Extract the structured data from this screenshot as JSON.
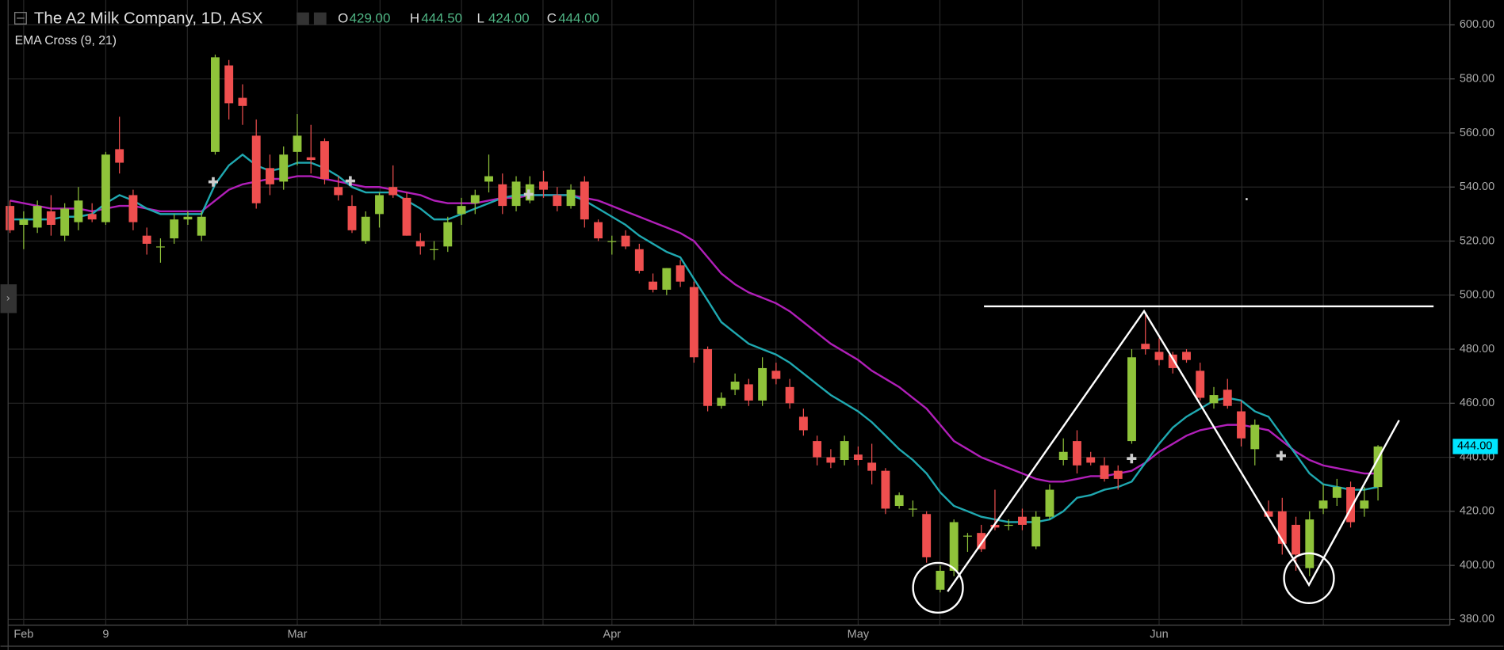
{
  "chart_data": {
    "type": "candlestick",
    "title": "The A2 Milk Company, 1D, ASX",
    "subtitle": "EMA Cross (9, 21)",
    "ohlc_header": [
      {
        "letter": "O",
        "value": "429.00"
      },
      {
        "letter": "H",
        "value": "444.50"
      },
      {
        "letter": "L",
        "value": "424.00"
      },
      {
        "letter": "C",
        "value": "444.00"
      }
    ],
    "last_price": {
      "value": 444,
      "label": "444.00"
    },
    "categories": [
      null,
      "Feb",
      null,
      null,
      null,
      null,
      null,
      "9",
      null,
      null,
      null,
      null,
      null,
      null,
      null,
      null,
      null,
      null,
      null,
      null,
      null,
      "Mar",
      null,
      null,
      null,
      null,
      null,
      null,
      null,
      null,
      null,
      null,
      null,
      null,
      null,
      null,
      null,
      null,
      null,
      null,
      null,
      null,
      null,
      null,
      "Apr",
      null,
      null,
      null,
      null,
      null,
      null,
      null,
      null,
      null,
      null,
      null,
      null,
      null,
      null,
      null,
      null,
      null,
      "May",
      null,
      null,
      null,
      null,
      null,
      null,
      null,
      null,
      null,
      null,
      null,
      null,
      null,
      null,
      null,
      null,
      null,
      null,
      null,
      null,
      null,
      "Jun",
      null,
      null,
      null,
      null,
      null,
      null,
      null,
      null,
      null,
      null,
      null,
      null,
      null,
      null,
      null,
      null
    ],
    "open": [
      533,
      526,
      525,
      531,
      522,
      527,
      530,
      527,
      554,
      537,
      522,
      518,
      521,
      528,
      522,
      553,
      585,
      573,
      559,
      547,
      542,
      553,
      551,
      557,
      540,
      533,
      520,
      530,
      540,
      536,
      520,
      517,
      518,
      530,
      534,
      542,
      541,
      533,
      535,
      542,
      537,
      533,
      542,
      527,
      520,
      522,
      517,
      505,
      502,
      511,
      503,
      480,
      459,
      465,
      467,
      461,
      472,
      466,
      455,
      446,
      440,
      439,
      441,
      438,
      435,
      422,
      421,
      419,
      391,
      398,
      411,
      412,
      415,
      415,
      418,
      407,
      418,
      439,
      446,
      440,
      437,
      435,
      446,
      482,
      479,
      478,
      479,
      472,
      460,
      465,
      457,
      443,
      420,
      420,
      415,
      399,
      421,
      425,
      429,
      421,
      429
    ],
    "high": [
      535,
      531,
      535,
      537,
      534,
      540,
      534,
      553,
      566,
      539,
      525,
      521,
      530,
      531,
      531,
      589,
      587,
      578,
      565,
      552,
      555,
      567,
      563,
      558,
      544,
      537,
      531,
      538,
      548,
      538,
      523,
      520,
      529,
      536,
      539,
      552,
      545,
      544,
      544,
      546,
      540,
      541,
      544,
      528,
      522,
      524,
      519,
      508,
      510,
      513,
      505,
      481,
      464,
      471,
      469,
      477,
      475,
      469,
      458,
      448,
      443,
      448,
      444,
      445,
      436,
      427,
      424,
      420,
      400,
      417,
      412,
      415,
      428,
      417,
      421,
      420,
      430,
      447,
      450,
      442,
      440,
      437,
      480,
      493,
      484,
      479,
      480,
      475,
      466,
      469,
      461,
      454,
      424,
      425,
      418,
      420,
      430,
      432,
      431,
      429,
      444.5
    ],
    "low": [
      523,
      517,
      523,
      522,
      520,
      524,
      527,
      526,
      545,
      524,
      515,
      512,
      519,
      526,
      520,
      552,
      565,
      563,
      532,
      537,
      539,
      548,
      545,
      541,
      535,
      523,
      519,
      525,
      536,
      522,
      515,
      513,
      516,
      526,
      530,
      538,
      530,
      531,
      534,
      536,
      531,
      532,
      525,
      520,
      515,
      517,
      508,
      501,
      500,
      503,
      475,
      457,
      458,
      463,
      459,
      459,
      467,
      458,
      448,
      437,
      436,
      437,
      437,
      430,
      419,
      421,
      418,
      401,
      390,
      396,
      405,
      405,
      413,
      413,
      413,
      406,
      417,
      437,
      434,
      437,
      431,
      428,
      445,
      478,
      474,
      471,
      475,
      461,
      458,
      458,
      444,
      437,
      417,
      404,
      398,
      396,
      419,
      422,
      414,
      418,
      424
    ],
    "close": [
      524,
      528,
      533,
      526,
      532,
      535,
      528,
      552,
      549,
      527,
      519,
      518,
      528,
      529,
      529,
      588,
      571,
      570,
      534,
      541,
      552,
      559,
      550,
      543,
      537,
      524,
      529,
      537,
      537,
      522,
      518,
      517,
      527,
      533,
      537,
      544,
      533,
      542,
      541,
      539,
      533,
      539,
      528,
      521,
      520,
      518,
      509,
      502,
      510,
      505,
      477,
      459,
      462,
      468,
      461,
      473,
      469,
      460,
      450,
      440,
      438,
      446,
      439,
      435,
      421,
      426,
      421,
      403,
      398,
      416,
      411,
      406,
      414,
      415,
      415,
      418,
      428,
      442,
      437,
      438,
      432,
      432,
      477,
      480,
      476,
      473,
      476,
      462,
      463,
      459,
      447,
      452,
      418,
      408,
      404,
      417,
      424,
      429,
      416,
      424,
      444
    ],
    "up_color": "#8fc33a",
    "down_color": "#ef4f4f",
    "ema_fast": {
      "color": "#1fa8b0",
      "values": [
        528,
        528,
        528,
        528,
        529,
        529,
        530,
        534,
        537,
        535,
        532,
        530,
        530,
        530,
        530,
        541,
        548,
        552,
        548,
        546,
        547,
        549,
        549,
        547,
        544,
        540,
        538,
        538,
        538,
        535,
        532,
        528,
        528,
        530,
        532,
        534,
        536,
        537,
        537,
        537,
        537,
        537,
        535,
        532,
        529,
        526,
        522,
        519,
        516,
        514,
        506,
        498,
        490,
        486,
        482,
        480,
        478,
        475,
        471,
        467,
        463,
        460,
        457,
        453,
        448,
        443,
        439,
        434,
        427,
        422,
        420,
        418,
        417,
        416,
        416,
        416,
        417,
        420,
        425,
        426,
        428,
        429,
        431,
        438,
        445,
        451,
        455,
        458,
        461,
        462,
        461,
        457,
        455,
        448,
        441,
        434,
        430,
        429,
        428,
        428,
        429
      ]
    },
    "ema_slow": {
      "color": "#b01fb8",
      "values": [
        535,
        534,
        533,
        532,
        532,
        532,
        531,
        532,
        533,
        533,
        532,
        531,
        531,
        531,
        531,
        535,
        539,
        541,
        542,
        543,
        543,
        544,
        544,
        543,
        542,
        541,
        540,
        540,
        539,
        538,
        537,
        535,
        534,
        534,
        534,
        535,
        536,
        536,
        537,
        537,
        537,
        537,
        536,
        535,
        533,
        531,
        529,
        527,
        525,
        523,
        520,
        514,
        508,
        504,
        501,
        499,
        497,
        494,
        490,
        486,
        482,
        479,
        476,
        472,
        469,
        466,
        462,
        458,
        452,
        446,
        443,
        440,
        438,
        436,
        434,
        432,
        431,
        431,
        432,
        433,
        433,
        434,
        435,
        438,
        442,
        445,
        448,
        450,
        451,
        452,
        452,
        451,
        450,
        446,
        442,
        439,
        437,
        436,
        435,
        434,
        434
      ]
    },
    "ylim": [
      377.9,
      609.2
    ],
    "yticks": [
      {
        "value": 380,
        "label": "380.00"
      },
      {
        "value": 400,
        "label": "400.00"
      },
      {
        "value": 420,
        "label": "420.00"
      },
      {
        "value": 440,
        "label": "440.00"
      },
      {
        "value": 460,
        "label": "460.00"
      },
      {
        "value": 480,
        "label": "480.00"
      },
      {
        "value": 500,
        "label": "500.00"
      },
      {
        "value": 520,
        "label": "520.00"
      },
      {
        "value": 540,
        "label": "540.00"
      },
      {
        "value": 560,
        "label": "560.00"
      },
      {
        "value": 580,
        "label": "580.00"
      },
      {
        "value": 600,
        "label": "600.00"
      }
    ],
    "grid": true
  }
}
